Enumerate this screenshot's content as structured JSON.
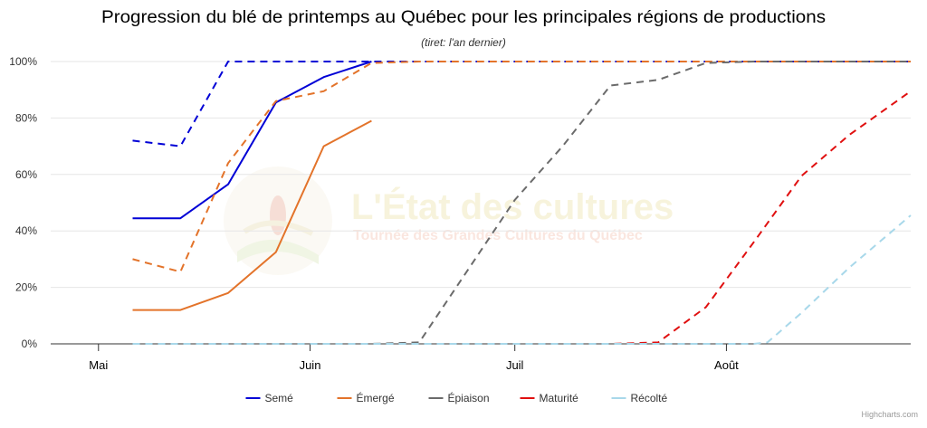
{
  "chart_data": {
    "type": "line",
    "title": "Progression du blé de printemps au Québec pour les principales régions de productions",
    "subtitle": "(tiret: l'an dernier)",
    "xlabel": "",
    "ylabel": "",
    "x_ticks": [
      "Mai",
      "Juin",
      "Juil",
      "Août"
    ],
    "x_tick_dates": [
      "2024-05-01",
      "2024-06-01",
      "2024-07-01",
      "2024-08-01"
    ],
    "xlim": [
      "2024-04-24",
      "2024-08-28"
    ],
    "y_ticks": [
      "0%",
      "20%",
      "40%",
      "60%",
      "80%",
      "100%"
    ],
    "ylim": [
      0,
      100
    ],
    "grid": "horizontal",
    "legend_position": "bottom",
    "series": [
      {
        "name": "Semé",
        "color": "#0000d6",
        "dash": false,
        "points": [
          [
            "2024-05-06",
            44.5
          ],
          [
            "2024-05-13",
            44.5
          ],
          [
            "2024-05-20",
            56.5
          ],
          [
            "2024-05-27",
            85.5
          ],
          [
            "2024-06-03",
            94.5
          ],
          [
            "2024-06-10",
            100
          ]
        ]
      },
      {
        "name": "Semé (l'an dernier)",
        "color": "#0000d6",
        "dash": true,
        "points": [
          [
            "2024-05-06",
            72
          ],
          [
            "2024-05-13",
            70
          ],
          [
            "2024-05-20",
            100
          ],
          [
            "2024-05-27",
            100
          ],
          [
            "2024-06-03",
            100
          ],
          [
            "2024-06-10",
            100
          ],
          [
            "2024-06-17",
            100
          ],
          [
            "2024-07-01",
            100
          ],
          [
            "2024-07-15",
            100
          ],
          [
            "2024-08-01",
            100
          ],
          [
            "2024-08-15",
            100
          ],
          [
            "2024-08-28",
            100
          ]
        ]
      },
      {
        "name": "Émergé",
        "color": "#e3732a",
        "dash": false,
        "points": [
          [
            "2024-05-06",
            12
          ],
          [
            "2024-05-13",
            12
          ],
          [
            "2024-05-20",
            18
          ],
          [
            "2024-05-27",
            32.5
          ],
          [
            "2024-06-03",
            70
          ],
          [
            "2024-06-10",
            79
          ]
        ]
      },
      {
        "name": "Émergé (l'an dernier)",
        "color": "#e3732a",
        "dash": true,
        "points": [
          [
            "2024-05-06",
            30
          ],
          [
            "2024-05-13",
            25.5
          ],
          [
            "2024-05-20",
            64
          ],
          [
            "2024-05-27",
            86
          ],
          [
            "2024-06-03",
            89.5
          ],
          [
            "2024-06-10",
            99.5
          ],
          [
            "2024-06-17",
            100
          ],
          [
            "2024-07-01",
            100
          ],
          [
            "2024-07-15",
            100
          ],
          [
            "2024-08-01",
            100
          ],
          [
            "2024-08-15",
            100
          ],
          [
            "2024-08-28",
            100
          ]
        ]
      },
      {
        "name": "Épiaison",
        "color": "#6b6b6b",
        "dash": true,
        "points": [
          [
            "2024-05-06",
            0
          ],
          [
            "2024-06-10",
            0
          ],
          [
            "2024-06-17",
            0.5
          ],
          [
            "2024-07-01",
            51
          ],
          [
            "2024-07-08",
            70
          ],
          [
            "2024-07-15",
            91.5
          ],
          [
            "2024-07-22",
            93.5
          ],
          [
            "2024-07-29",
            99.5
          ],
          [
            "2024-08-05",
            100
          ],
          [
            "2024-08-15",
            100
          ],
          [
            "2024-08-28",
            100
          ]
        ]
      },
      {
        "name": "Maturité",
        "color": "#e01010",
        "dash": true,
        "points": [
          [
            "2024-05-06",
            0
          ],
          [
            "2024-07-15",
            0
          ],
          [
            "2024-07-22",
            0.5
          ],
          [
            "2024-07-29",
            13
          ],
          [
            "2024-08-05",
            36
          ],
          [
            "2024-08-12",
            59.5
          ],
          [
            "2024-08-19",
            74
          ],
          [
            "2024-08-28",
            89.5
          ]
        ]
      },
      {
        "name": "Récolté",
        "color": "#a8d8ea",
        "dash": true,
        "points": [
          [
            "2024-05-06",
            0
          ],
          [
            "2024-08-05",
            0
          ],
          [
            "2024-08-07",
            0.5
          ],
          [
            "2024-08-12",
            11
          ],
          [
            "2024-08-19",
            27
          ],
          [
            "2024-08-28",
            45.5
          ]
        ]
      }
    ],
    "legend": [
      {
        "label": "Semé",
        "color": "#0000d6"
      },
      {
        "label": "Émergé",
        "color": "#e3732a"
      },
      {
        "label": "Épiaison",
        "color": "#6b6b6b"
      },
      {
        "label": "Maturité",
        "color": "#e01010"
      },
      {
        "label": "Récolté",
        "color": "#a8d8ea"
      }
    ]
  },
  "watermark": {
    "title": "L'État des cultures",
    "subtitle": "Tournée des Grandes Cultures du Québec"
  },
  "credits": "Highcharts.com"
}
